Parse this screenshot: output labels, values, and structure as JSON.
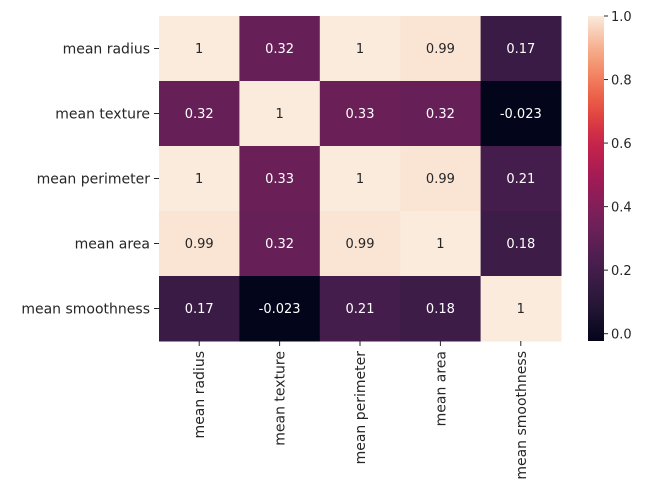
{
  "chart_data": {
    "type": "heatmap",
    "rows": [
      "mean radius",
      "mean texture",
      "mean perimeter",
      "mean area",
      "mean smoothness"
    ],
    "columns": [
      "mean radius",
      "mean texture",
      "mean perimeter",
      "mean area",
      "mean smoothness"
    ],
    "values": [
      [
        1,
        0.32,
        1,
        0.99,
        0.17
      ],
      [
        0.32,
        1,
        0.33,
        0.32,
        -0.023
      ],
      [
        1,
        0.33,
        1,
        0.99,
        0.21
      ],
      [
        0.99,
        0.32,
        0.99,
        1,
        0.18
      ],
      [
        0.17,
        -0.023,
        0.21,
        0.18,
        1
      ]
    ],
    "cell_labels": [
      [
        "1",
        "0.32",
        "1",
        "0.99",
        "0.17"
      ],
      [
        "0.32",
        "1",
        "0.33",
        "0.32",
        "-0.023"
      ],
      [
        "1",
        "0.33",
        "1",
        "0.99",
        "0.21"
      ],
      [
        "0.99",
        "0.32",
        "0.99",
        "1",
        "0.18"
      ],
      [
        "0.17",
        "-0.023",
        "0.21",
        "0.18",
        "1"
      ]
    ],
    "colorbar": {
      "range": [
        -0.023,
        1
      ],
      "ticks": [
        0.0,
        0.2,
        0.4,
        0.6,
        0.8,
        1.0
      ],
      "tick_labels": [
        "0.0",
        "0.2",
        "0.4",
        "0.6",
        "0.8",
        "1.0"
      ],
      "colormap": "rocket"
    }
  }
}
